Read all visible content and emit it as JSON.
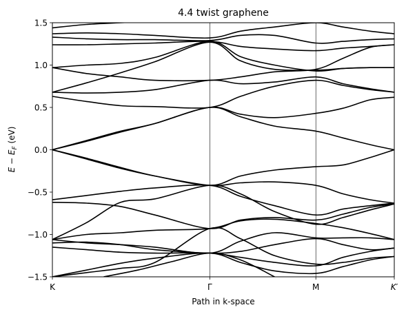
{
  "chart_data": {
    "type": "line",
    "title": "4.4 twist graphene",
    "xlabel": "Path in k-space",
    "ylabel": "E − E_F (eV)",
    "ylabel_parts": {
      "lead": "E − E",
      "sub": "F",
      "tail": " (eV)"
    },
    "ylim": [
      -1.5,
      1.5
    ],
    "xlim": [
      0,
      1
    ],
    "grid": false,
    "xticks": [
      {
        "pos": 0.0,
        "label": "K"
      },
      {
        "pos": 0.4603,
        "label": "Γ"
      },
      {
        "pos": 0.7706,
        "label": "M"
      },
      {
        "pos": 1.0,
        "label": "K′"
      }
    ],
    "yticks": [
      {
        "value": -1.5,
        "label": "−1.5"
      },
      {
        "value": -1.0,
        "label": "−1.0"
      },
      {
        "value": -0.5,
        "label": "−0.5"
      },
      {
        "value": 0.0,
        "label": "0.0"
      },
      {
        "value": 0.5,
        "label": "0.5"
      },
      {
        "value": 1.0,
        "label": "1.0"
      },
      {
        "value": 1.5,
        "label": "1.5"
      }
    ],
    "series": [
      {
        "values": [
          [
            0,
            0.0
          ],
          [
            0.1,
            0.11
          ],
          [
            0.2,
            0.22
          ],
          [
            0.3,
            0.31
          ],
          [
            0.4603,
            0.5
          ],
          [
            0.55,
            0.39
          ],
          [
            0.65,
            0.28
          ],
          [
            0.7706,
            0.22
          ],
          [
            0.85,
            0.14
          ],
          [
            0.93,
            0.06
          ],
          [
            1,
            0.0
          ]
        ]
      },
      {
        "values": [
          [
            0,
            0.0
          ],
          [
            0.1,
            0.1
          ],
          [
            0.2,
            0.21
          ],
          [
            0.3,
            0.31
          ],
          [
            0.4603,
            0.5
          ],
          [
            0.55,
            0.42
          ],
          [
            0.65,
            0.38
          ],
          [
            0.7706,
            0.43
          ],
          [
            0.85,
            0.49
          ],
          [
            0.93,
            0.59
          ],
          [
            1,
            0.62
          ]
        ]
      },
      {
        "values": [
          [
            0,
            0.0
          ],
          [
            0.1,
            -0.11
          ],
          [
            0.2,
            -0.22
          ],
          [
            0.3,
            -0.31
          ],
          [
            0.4603,
            -0.42
          ],
          [
            0.55,
            -0.31
          ],
          [
            0.65,
            -0.24
          ],
          [
            0.7706,
            -0.2
          ],
          [
            0.85,
            -0.18
          ],
          [
            0.93,
            -0.09
          ],
          [
            1,
            0.0
          ]
        ]
      },
      {
        "values": [
          [
            0,
            0.0
          ],
          [
            0.1,
            -0.1
          ],
          [
            0.2,
            -0.21
          ],
          [
            0.3,
            -0.31
          ],
          [
            0.4603,
            -0.42
          ],
          [
            0.55,
            -0.39
          ],
          [
            0.65,
            -0.38
          ],
          [
            0.7706,
            -0.42
          ],
          [
            0.85,
            -0.52
          ],
          [
            0.93,
            -0.59
          ],
          [
            1,
            -0.63
          ]
        ]
      },
      {
        "values": [
          [
            0,
            0.63
          ],
          [
            0.1,
            0.57
          ],
          [
            0.2,
            0.52
          ],
          [
            0.3,
            0.51
          ],
          [
            0.4603,
            0.5
          ],
          [
            0.55,
            0.63
          ],
          [
            0.65,
            0.75
          ],
          [
            0.7706,
            0.82
          ],
          [
            0.85,
            0.76
          ],
          [
            0.93,
            0.71
          ],
          [
            1,
            0.68
          ]
        ]
      },
      {
        "values": [
          [
            0,
            0.68
          ],
          [
            0.1,
            0.67
          ],
          [
            0.2,
            0.68
          ],
          [
            0.3,
            0.71
          ],
          [
            0.4603,
            0.82
          ],
          [
            0.55,
            0.78
          ],
          [
            0.65,
            0.8
          ],
          [
            0.7706,
            0.86
          ],
          [
            0.85,
            0.78
          ],
          [
            0.93,
            0.72
          ],
          [
            1,
            0.68
          ]
        ]
      },
      {
        "values": [
          [
            0,
            0.68
          ],
          [
            0.1,
            0.79
          ],
          [
            0.2,
            0.91
          ],
          [
            0.3,
            1.04
          ],
          [
            0.4603,
            1.27
          ],
          [
            0.55,
            1.05
          ],
          [
            0.65,
            0.95
          ],
          [
            0.7706,
            0.94
          ],
          [
            0.85,
            0.96
          ],
          [
            0.93,
            0.97
          ],
          [
            1,
            0.97
          ]
        ]
      },
      {
        "values": [
          [
            0,
            0.97
          ],
          [
            0.1,
            0.9
          ],
          [
            0.2,
            0.86
          ],
          [
            0.3,
            0.82
          ],
          [
            0.4603,
            0.82
          ],
          [
            0.55,
            0.86
          ],
          [
            0.65,
            0.92
          ],
          [
            0.7706,
            0.95
          ],
          [
            0.85,
            1.08
          ],
          [
            0.93,
            1.21
          ],
          [
            1,
            1.24
          ]
        ]
      },
      {
        "values": [
          [
            0,
            0.97
          ],
          [
            0.1,
            1.0
          ],
          [
            0.2,
            1.02
          ],
          [
            0.3,
            1.09
          ],
          [
            0.4603,
            1.28
          ],
          [
            0.55,
            1.1
          ],
          [
            0.65,
            1.0
          ],
          [
            0.7706,
            0.93
          ],
          [
            0.85,
            0.96
          ],
          [
            0.93,
            0.97
          ],
          [
            1,
            0.97
          ]
        ]
      },
      {
        "values": [
          [
            0,
            1.24
          ],
          [
            0.1,
            1.24
          ],
          [
            0.2,
            1.25
          ],
          [
            0.3,
            1.26
          ],
          [
            0.4603,
            1.28
          ],
          [
            0.55,
            1.22
          ],
          [
            0.65,
            1.19
          ],
          [
            0.7706,
            1.17
          ],
          [
            0.85,
            1.2
          ],
          [
            0.93,
            1.22
          ],
          [
            1,
            1.24
          ]
        ]
      },
      {
        "values": [
          [
            0,
            1.33
          ],
          [
            0.1,
            1.31
          ],
          [
            0.2,
            1.3
          ],
          [
            0.3,
            1.3
          ],
          [
            0.4603,
            1.29
          ],
          [
            0.55,
            1.35
          ],
          [
            0.65,
            1.35
          ],
          [
            0.7706,
            1.26
          ],
          [
            0.85,
            1.28
          ],
          [
            0.93,
            1.3
          ],
          [
            1,
            1.31
          ]
        ]
      },
      {
        "values": [
          [
            0,
            1.37
          ],
          [
            0.1,
            1.38
          ],
          [
            0.2,
            1.37
          ],
          [
            0.3,
            1.35
          ],
          [
            0.4603,
            1.32
          ],
          [
            0.55,
            1.4
          ],
          [
            0.65,
            1.45
          ],
          [
            0.7706,
            1.5
          ],
          [
            0.85,
            1.45
          ],
          [
            0.93,
            1.4
          ],
          [
            1,
            1.37
          ]
        ]
      },
      {
        "values": [
          [
            0,
            1.44
          ],
          [
            0.1,
            1.48
          ],
          [
            0.2,
            1.5
          ],
          [
            0.3,
            1.52
          ]
        ]
      },
      {
        "values": [
          [
            0,
            -0.59
          ],
          [
            0.1,
            -0.54
          ],
          [
            0.2,
            -0.49
          ],
          [
            0.3,
            -0.45
          ],
          [
            0.4603,
            -0.42
          ],
          [
            0.55,
            -0.55
          ],
          [
            0.65,
            -0.66
          ],
          [
            0.7706,
            -0.77
          ],
          [
            0.85,
            -0.7
          ],
          [
            0.93,
            -0.66
          ],
          [
            1,
            -0.63
          ]
        ]
      },
      {
        "values": [
          [
            0,
            -0.62
          ],
          [
            0.1,
            -0.63
          ],
          [
            0.2,
            -0.67
          ],
          [
            0.3,
            -0.77
          ],
          [
            0.4603,
            -0.93
          ],
          [
            0.55,
            -0.83
          ],
          [
            0.65,
            -0.8
          ],
          [
            0.7706,
            -0.83
          ],
          [
            0.85,
            -0.76
          ],
          [
            0.93,
            -0.68
          ],
          [
            1,
            -0.64
          ]
        ]
      },
      {
        "values": [
          [
            0,
            -1.06
          ],
          [
            0.1,
            -0.86
          ],
          [
            0.2,
            -0.62
          ],
          [
            0.3,
            -0.58
          ],
          [
            0.4603,
            -0.42
          ],
          [
            0.55,
            -0.52
          ],
          [
            0.65,
            -0.73
          ],
          [
            0.7706,
            -0.88
          ],
          [
            0.85,
            -0.8
          ],
          [
            0.93,
            -0.71
          ],
          [
            1,
            -0.64
          ]
        ]
      },
      {
        "values": [
          [
            0,
            -1.06
          ],
          [
            0.1,
            -1.0
          ],
          [
            0.2,
            -0.98
          ],
          [
            0.3,
            -0.95
          ],
          [
            0.4603,
            -0.93
          ],
          [
            0.55,
            -0.84
          ],
          [
            0.65,
            -0.82
          ],
          [
            0.7706,
            -0.87
          ],
          [
            0.85,
            -0.92
          ],
          [
            0.93,
            -0.99
          ],
          [
            1,
            -1.06
          ]
        ]
      },
      {
        "values": [
          [
            0,
            -1.06
          ],
          [
            0.1,
            -1.1
          ],
          [
            0.2,
            -1.12
          ],
          [
            0.3,
            -1.15
          ],
          [
            0.4603,
            -1.22
          ],
          [
            0.55,
            -1.08
          ],
          [
            0.65,
            -0.98
          ],
          [
            0.7706,
            -1.04
          ],
          [
            0.85,
            -1.04
          ],
          [
            0.93,
            -1.04
          ],
          [
            1,
            -1.06
          ]
        ]
      },
      {
        "values": [
          [
            0,
            -1.1
          ],
          [
            0.1,
            -1.09
          ],
          [
            0.2,
            -1.12
          ],
          [
            0.3,
            -1.18
          ],
          [
            0.4603,
            -1.22
          ],
          [
            0.55,
            -1.2
          ],
          [
            0.65,
            -1.12
          ],
          [
            0.7706,
            -1.05
          ],
          [
            0.85,
            -1.12
          ],
          [
            0.93,
            -1.18
          ],
          [
            1,
            -1.16
          ]
        ]
      },
      {
        "values": [
          [
            0,
            -1.15
          ],
          [
            0.1,
            -1.18
          ],
          [
            0.2,
            -1.21
          ],
          [
            0.3,
            -1.22
          ],
          [
            0.4603,
            -1.22
          ],
          [
            0.55,
            -1.27
          ],
          [
            0.65,
            -1.33
          ],
          [
            0.7706,
            -1.37
          ],
          [
            0.85,
            -1.27
          ],
          [
            0.93,
            -1.2
          ],
          [
            1,
            -1.16
          ]
        ]
      },
      {
        "values": [
          [
            0,
            -1.5
          ],
          [
            0.1,
            -1.42
          ],
          [
            0.2,
            -1.34
          ],
          [
            0.3,
            -1.28
          ],
          [
            0.4603,
            -1.22
          ],
          [
            0.55,
            -1.33
          ],
          [
            0.65,
            -1.43
          ],
          [
            0.7706,
            -1.46
          ],
          [
            0.85,
            -1.38
          ],
          [
            0.93,
            -1.3
          ],
          [
            1,
            -1.26
          ]
        ]
      },
      {
        "values": [
          [
            0,
            -1.5
          ],
          [
            0.1,
            -1.45
          ],
          [
            0.2,
            -1.4
          ],
          [
            0.3,
            -1.33
          ],
          [
            0.4603,
            -0.93
          ],
          [
            0.55,
            -1.05
          ],
          [
            0.65,
            -1.25
          ],
          [
            0.7706,
            -1.35
          ],
          [
            0.85,
            -1.33
          ],
          [
            0.93,
            -1.28
          ],
          [
            1,
            -1.26
          ]
        ]
      },
      {
        "values": [
          [
            0.15,
            -1.5
          ],
          [
            0.25,
            -1.42
          ],
          [
            0.35,
            -1.32
          ],
          [
            0.4603,
            -1.22
          ],
          [
            0.55,
            -1.3
          ],
          [
            0.65,
            -1.5
          ]
        ]
      }
    ]
  }
}
